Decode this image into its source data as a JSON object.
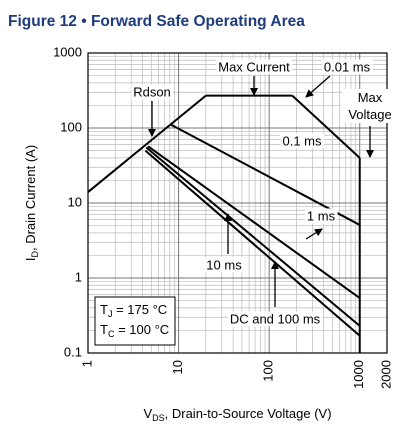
{
  "chart_data": {
    "type": "line",
    "title": "Figure 12 • Forward Safe Operating Area",
    "x_label": {
      "symbol": "V",
      "subscript": "DS",
      "text": ", Drain-to-Source Voltage (V)"
    },
    "y_label": {
      "symbol": "I",
      "subscript": "D",
      "text": ", Drain Current (A)"
    },
    "log_x": true,
    "log_y": true,
    "grid": true,
    "minor_grid": true,
    "color": "#000000",
    "xlim": [
      1,
      2000
    ],
    "ylim": [
      0.1,
      1000
    ],
    "xticks": [
      1,
      10,
      100,
      1000,
      2000
    ],
    "yticks": [
      0.1,
      1,
      10,
      100,
      1000
    ],
    "series": [
      {
        "name": "Rdson",
        "x": [
          1,
          20
        ],
        "values": [
          14,
          270
        ]
      },
      {
        "name": "Max Current",
        "x": [
          20,
          180
        ],
        "values": [
          270,
          270
        ]
      },
      {
        "name": "0.01 ms",
        "x": [
          180,
          1000
        ],
        "values": [
          270,
          40
        ]
      },
      {
        "name": "Max Voltage",
        "x": [
          1000,
          1000
        ],
        "values": [
          40,
          0.1
        ]
      },
      {
        "name": "0.1 ms",
        "x": [
          8.1,
          1000
        ],
        "values": [
          112,
          5.1
        ]
      },
      {
        "name": "1 ms",
        "x": [
          4.6,
          1000
        ],
        "values": [
          57,
          0.54
        ]
      },
      {
        "name": "10 ms",
        "x": [
          4.4,
          1000
        ],
        "values": [
          55,
          0.23
        ]
      },
      {
        "name": "DC and 100 ms",
        "x": [
          4.3,
          1000
        ],
        "values": [
          50,
          0.17
        ]
      }
    ],
    "conditions": [
      {
        "symbol": "T",
        "subscript": "J",
        "text": " = 175 °C"
      },
      {
        "symbol": "T",
        "subscript": "C",
        "text": " = 100 °C"
      }
    ]
  }
}
